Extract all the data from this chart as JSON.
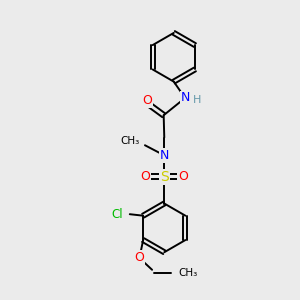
{
  "background_color": "#ebebeb",
  "bond_color": "#000000",
  "atom_colors": {
    "N": "#0000ff",
    "O": "#ff0000",
    "S": "#cccc00",
    "Cl": "#00bb00",
    "C": "#000000",
    "H": "#6699aa"
  },
  "figsize": [
    3.0,
    3.0
  ],
  "dpi": 100,
  "xlim": [
    0,
    10
  ],
  "ylim": [
    0,
    10
  ]
}
